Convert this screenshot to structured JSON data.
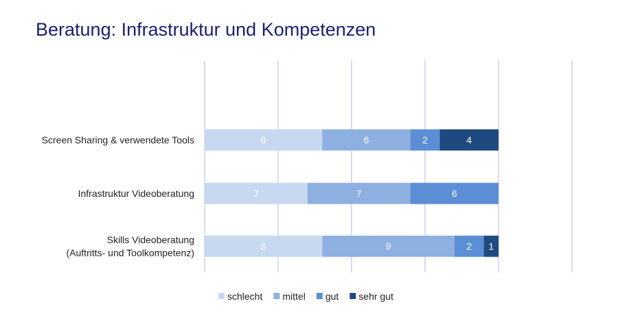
{
  "chart_data": {
    "type": "bar",
    "orientation": "horizontal",
    "stacked": true,
    "title": "Beratung: Infrastruktur und Kompetenzen",
    "categories": [
      "Screen Sharing & verwendete Tools",
      "Infrastruktur Videoberatung",
      "Skills Videoberatung|(Auftritts- und Toolkompetenz)"
    ],
    "series": [
      {
        "name": "schlecht",
        "color": "#C7D8F0",
        "values": [
          8,
          7,
          8
        ]
      },
      {
        "name": "mittel",
        "color": "#8EB0E1",
        "values": [
          6,
          7,
          9
        ]
      },
      {
        "name": "gut",
        "color": "#5B8ED4",
        "values": [
          2,
          6,
          2
        ]
      },
      {
        "name": "sehr gut",
        "color": "#1F4A80",
        "values": [
          4,
          0,
          1
        ]
      }
    ],
    "xlim": [
      0,
      25
    ],
    "xticks": [
      0,
      5,
      10,
      15,
      20,
      25
    ],
    "grid": true,
    "gridColor": "#C9C6EC",
    "legend": "bottom",
    "xlabel": "",
    "ylabel": ""
  }
}
